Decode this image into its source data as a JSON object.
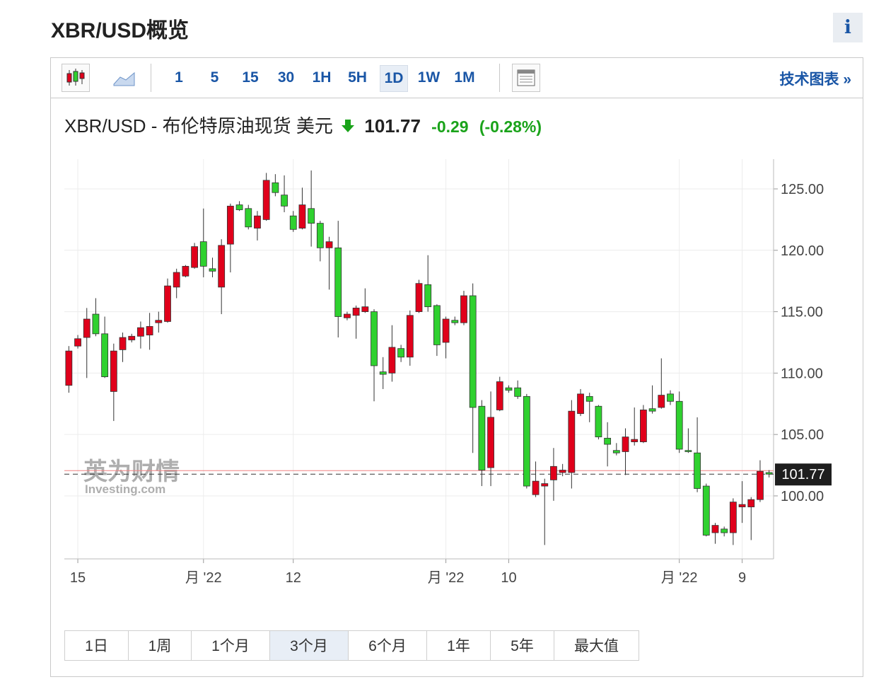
{
  "header": {
    "title": "XBR/USD概览",
    "info": "i"
  },
  "toolbar": {
    "intervals": [
      "1",
      "5",
      "15",
      "30",
      "1H",
      "5H",
      "1D",
      "1W",
      "1M"
    ],
    "active": "1D",
    "link": "技术图表 »"
  },
  "quote": {
    "name": "XBR/USD - 布伦特原油现货 美元",
    "price": "101.77",
    "change": "-0.29",
    "change_pct": "(-0.28%)"
  },
  "chart_data": {
    "type": "candlestick",
    "up_color": "#e0001b",
    "down_color": "#2fd12f",
    "categories": [
      null,
      "15",
      null,
      null,
      null,
      null,
      null,
      null,
      null,
      null,
      null,
      null,
      null,
      null,
      null,
      "月 '22",
      null,
      null,
      null,
      null,
      null,
      null,
      null,
      null,
      null,
      "12",
      null,
      null,
      null,
      null,
      null,
      null,
      null,
      null,
      null,
      null,
      null,
      null,
      null,
      null,
      null,
      null,
      "月 '22",
      null,
      null,
      null,
      null,
      null,
      null,
      "10",
      null,
      null,
      null,
      null,
      null,
      null,
      null,
      null,
      null,
      null,
      null,
      null,
      null,
      null,
      null,
      null,
      null,
      null,
      "月 '22",
      null,
      null,
      null,
      null,
      null,
      null,
      "9",
      null,
      null,
      null
    ],
    "open": [
      109.0,
      112.2,
      112.9,
      114.8,
      113.2,
      108.5,
      111.9,
      112.7,
      113.0,
      113.1,
      114.1,
      114.2,
      117.0,
      117.9,
      118.6,
      120.7,
      118.5,
      117.0,
      120.5,
      123.7,
      123.4,
      121.8,
      122.5,
      125.5,
      124.5,
      122.8,
      121.8,
      123.4,
      122.2,
      120.2,
      120.2,
      114.5,
      114.7,
      115.0,
      115.0,
      110.1,
      110.0,
      112.0,
      111.3,
      115.0,
      117.2,
      115.5,
      112.5,
      114.3,
      114.1,
      116.3,
      107.3,
      102.3,
      107.0,
      108.8,
      108.8,
      108.1,
      100.1,
      100.8,
      101.3,
      101.9,
      101.9,
      106.7,
      108.1,
      107.3,
      104.7,
      103.7,
      103.6,
      104.4,
      104.4,
      107.1,
      107.2,
      108.3,
      107.7,
      103.7,
      103.5,
      100.8,
      97.0,
      97.3,
      97.0,
      99.1,
      99.1,
      99.7,
      101.9
    ],
    "high": [
      112.2,
      113.1,
      115.3,
      116.1,
      114.6,
      112.4,
      113.3,
      113.2,
      114.2,
      114.9,
      115.0,
      117.7,
      118.5,
      118.8,
      120.6,
      123.4,
      119.4,
      120.9,
      123.8,
      124.0,
      123.7,
      123.2,
      126.3,
      126.2,
      126.1,
      123.2,
      125.1,
      126.5,
      122.4,
      121.1,
      122.4,
      115.0,
      115.5,
      116.9,
      115.2,
      111.3,
      113.9,
      112.3,
      115.1,
      117.6,
      119.6,
      115.6,
      114.6,
      114.6,
      116.7,
      117.3,
      107.8,
      108.5,
      109.7,
      109.0,
      109.4,
      108.3,
      102.8,
      101.4,
      103.9,
      102.6,
      107.8,
      108.7,
      108.4,
      107.4,
      106.0,
      104.3,
      105.5,
      107.2,
      107.4,
      109.0,
      111.2,
      108.6,
      108.5,
      105.5,
      106.4,
      101.0,
      97.8,
      97.5,
      99.8,
      101.2,
      99.9,
      102.9,
      102.1
    ],
    "low": [
      108.4,
      112.0,
      109.6,
      113.0,
      109.6,
      106.1,
      110.9,
      112.5,
      112.0,
      111.9,
      113.3,
      114.1,
      116.1,
      117.8,
      118.5,
      117.8,
      117.8,
      114.8,
      118.2,
      123.2,
      121.7,
      120.8,
      122.4,
      124.4,
      123.1,
      121.5,
      121.7,
      120.3,
      119.1,
      116.8,
      112.9,
      114.3,
      112.8,
      114.9,
      107.7,
      108.7,
      109.3,
      110.9,
      110.6,
      114.9,
      115.0,
      111.4,
      111.2,
      113.9,
      113.9,
      103.5,
      100.8,
      100.8,
      106.9,
      108.4,
      107.9,
      100.6,
      99.9,
      96.0,
      99.6,
      101.6,
      100.6,
      106.5,
      106.0,
      104.6,
      102.4,
      103.3,
      101.7,
      104.1,
      104.3,
      106.7,
      107.1,
      107.4,
      103.5,
      103.5,
      100.3,
      96.7,
      96.1,
      96.7,
      96.0,
      97.8,
      96.4,
      99.5,
      101.5
    ],
    "close": [
      111.8,
      112.8,
      114.4,
      113.2,
      109.7,
      111.8,
      112.9,
      113.0,
      113.7,
      113.8,
      114.3,
      117.1,
      118.2,
      118.7,
      120.3,
      118.7,
      118.3,
      120.4,
      123.6,
      123.3,
      121.9,
      122.8,
      125.7,
      124.7,
      123.6,
      121.7,
      123.7,
      122.2,
      120.2,
      120.7,
      114.6,
      114.8,
      115.3,
      115.4,
      110.6,
      109.9,
      112.1,
      111.3,
      114.7,
      117.3,
      115.4,
      112.3,
      114.4,
      114.1,
      116.3,
      107.2,
      102.1,
      106.4,
      109.3,
      108.6,
      108.1,
      100.8,
      101.2,
      101.0,
      102.4,
      102.1,
      106.9,
      108.3,
      107.7,
      104.8,
      104.2,
      103.5,
      104.8,
      104.6,
      107.0,
      106.9,
      108.2,
      107.7,
      103.8,
      103.6,
      100.6,
      96.8,
      97.6,
      97.0,
      99.5,
      99.3,
      99.7,
      102.0,
      101.77
    ],
    "last_price": 101.77,
    "prev_close_line": 102.06,
    "ylim": [
      94.87,
      127.42
    ],
    "yticks": [
      {
        "value": 100,
        "label": "100.00"
      },
      {
        "value": 105,
        "label": "105.00"
      },
      {
        "value": 110,
        "label": "110.00"
      },
      {
        "value": 115,
        "label": "115.00"
      },
      {
        "value": 120,
        "label": "120.00"
      },
      {
        "value": 125,
        "label": "125.00"
      }
    ],
    "grid": true,
    "watermark": {
      "cn": "英为财情",
      "en": "Investing.com"
    }
  },
  "ranges": {
    "items": [
      "1日",
      "1周",
      "1个月",
      "3个月",
      "6个月",
      "1年",
      "5年",
      "最大值"
    ],
    "active": "3个月"
  }
}
